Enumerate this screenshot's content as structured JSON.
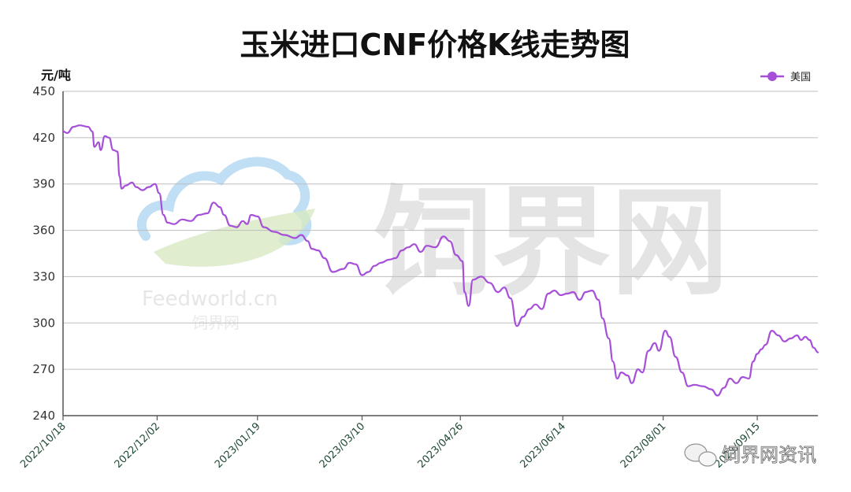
{
  "watermark": {
    "logo_text": "Feedworld.cn",
    "logo_sub": "饲界网",
    "big_text": "饲界网",
    "wechat_text": "饲界网资讯"
  },
  "colors": {
    "series": "#a64fd8",
    "grid": "#bdbdbd"
  },
  "chart_data": {
    "type": "line",
    "title": "玉米进口CNF价格K线走势图",
    "ylabel": "元/吨",
    "xlabel": "",
    "ylim": [
      240,
      450
    ],
    "yticks": [
      240,
      270,
      300,
      330,
      360,
      390,
      420,
      450
    ],
    "grid": true,
    "legend_position": "top-right",
    "x_range": [
      "2022-10-18",
      "2023-10-14"
    ],
    "xticks": [
      "2022/10/18",
      "2022/12/02",
      "2023/01/19",
      "2023/03/10",
      "2023/04/26",
      "2023/06/14",
      "2023/08/01",
      "2023/09/15"
    ],
    "xtick_dates": [
      "2022-10-18",
      "2022-12-02",
      "2023-01-19",
      "2023-03-10",
      "2023-04-26",
      "2023-06-14",
      "2023-08-01",
      "2023-09-15"
    ],
    "series": [
      {
        "name": "美国",
        "points": [
          [
            "2022-10-18",
            424
          ],
          [
            "2022-10-20",
            423
          ],
          [
            "2022-10-23",
            427
          ],
          [
            "2022-10-26",
            428
          ],
          [
            "2022-10-30",
            427
          ],
          [
            "2022-11-01",
            424
          ],
          [
            "2022-11-02",
            414
          ],
          [
            "2022-11-04",
            417
          ],
          [
            "2022-11-05",
            412
          ],
          [
            "2022-11-07",
            421
          ],
          [
            "2022-11-09",
            420
          ],
          [
            "2022-11-11",
            412
          ],
          [
            "2022-11-13",
            411
          ],
          [
            "2022-11-14",
            395
          ],
          [
            "2022-11-15",
            387
          ],
          [
            "2022-11-17",
            389
          ],
          [
            "2022-11-20",
            391
          ],
          [
            "2022-11-22",
            388
          ],
          [
            "2022-11-25",
            386
          ],
          [
            "2022-11-28",
            388
          ],
          [
            "2022-12-01",
            390
          ],
          [
            "2022-12-03",
            384
          ],
          [
            "2022-12-05",
            370
          ],
          [
            "2022-12-07",
            365
          ],
          [
            "2022-12-10",
            364
          ],
          [
            "2022-12-14",
            367
          ],
          [
            "2022-12-18",
            366
          ],
          [
            "2022-12-22",
            370
          ],
          [
            "2022-12-26",
            371
          ],
          [
            "2022-12-29",
            378
          ],
          [
            "2023-01-01",
            375
          ],
          [
            "2023-01-03",
            370
          ],
          [
            "2023-01-06",
            363
          ],
          [
            "2023-01-09",
            362
          ],
          [
            "2023-01-12",
            366
          ],
          [
            "2023-01-14",
            364
          ],
          [
            "2023-01-16",
            370
          ],
          [
            "2023-01-19",
            369
          ],
          [
            "2023-01-22",
            362
          ],
          [
            "2023-01-27",
            359
          ],
          [
            "2023-02-01",
            357
          ],
          [
            "2023-02-06",
            355
          ],
          [
            "2023-02-09",
            357
          ],
          [
            "2023-02-12",
            353
          ],
          [
            "2023-02-14",
            348
          ],
          [
            "2023-02-17",
            347
          ],
          [
            "2023-02-20",
            342
          ],
          [
            "2023-02-24",
            333
          ],
          [
            "2023-03-01",
            335
          ],
          [
            "2023-03-04",
            339
          ],
          [
            "2023-03-07",
            338
          ],
          [
            "2023-03-10",
            331
          ],
          [
            "2023-03-13",
            333
          ],
          [
            "2023-03-16",
            337
          ],
          [
            "2023-03-19",
            339
          ],
          [
            "2023-03-23",
            341
          ],
          [
            "2023-03-26",
            342
          ],
          [
            "2023-03-29",
            347
          ],
          [
            "2023-04-01",
            349
          ],
          [
            "2023-04-04",
            351
          ],
          [
            "2023-04-07",
            346
          ],
          [
            "2023-04-10",
            350
          ],
          [
            "2023-04-14",
            349
          ],
          [
            "2023-04-18",
            356
          ],
          [
            "2023-04-21",
            353
          ],
          [
            "2023-04-24",
            344
          ],
          [
            "2023-04-27",
            340
          ],
          [
            "2023-04-28",
            320
          ],
          [
            "2023-04-30",
            311
          ],
          [
            "2023-05-02",
            328
          ],
          [
            "2023-05-06",
            330
          ],
          [
            "2023-05-10",
            326
          ],
          [
            "2023-05-14",
            320
          ],
          [
            "2023-05-17",
            323
          ],
          [
            "2023-05-20",
            316
          ],
          [
            "2023-05-23",
            298
          ],
          [
            "2023-05-26",
            304
          ],
          [
            "2023-05-29",
            309
          ],
          [
            "2023-06-01",
            312
          ],
          [
            "2023-06-04",
            309
          ],
          [
            "2023-06-07",
            319
          ],
          [
            "2023-06-10",
            321
          ],
          [
            "2023-06-13",
            318
          ],
          [
            "2023-06-16",
            319
          ],
          [
            "2023-06-19",
            320
          ],
          [
            "2023-06-22",
            315
          ],
          [
            "2023-06-25",
            320
          ],
          [
            "2023-06-28",
            321
          ],
          [
            "2023-07-01",
            315
          ],
          [
            "2023-07-03",
            303
          ],
          [
            "2023-07-06",
            290
          ],
          [
            "2023-07-08",
            275
          ],
          [
            "2023-07-10",
            264
          ],
          [
            "2023-07-12",
            268
          ],
          [
            "2023-07-15",
            266
          ],
          [
            "2023-07-17",
            261
          ],
          [
            "2023-07-20",
            270
          ],
          [
            "2023-07-22",
            268
          ],
          [
            "2023-07-25",
            282
          ],
          [
            "2023-07-28",
            287
          ],
          [
            "2023-07-30",
            282
          ],
          [
            "2023-08-02",
            295
          ],
          [
            "2023-08-04",
            291
          ],
          [
            "2023-08-07",
            278
          ],
          [
            "2023-08-10",
            268
          ],
          [
            "2023-08-13",
            259
          ],
          [
            "2023-08-16",
            260
          ],
          [
            "2023-08-20",
            259
          ],
          [
            "2023-08-24",
            257
          ],
          [
            "2023-08-27",
            253
          ],
          [
            "2023-08-30",
            258
          ],
          [
            "2023-09-02",
            264
          ],
          [
            "2023-09-05",
            261
          ],
          [
            "2023-09-08",
            265
          ],
          [
            "2023-09-11",
            264
          ],
          [
            "2023-09-13",
            275
          ],
          [
            "2023-09-15",
            280
          ],
          [
            "2023-09-17",
            283
          ],
          [
            "2023-09-19",
            286
          ],
          [
            "2023-09-22",
            295
          ],
          [
            "2023-09-25",
            292
          ],
          [
            "2023-09-28",
            288
          ],
          [
            "2023-10-01",
            290
          ],
          [
            "2023-10-04",
            292
          ],
          [
            "2023-10-06",
            289
          ],
          [
            "2023-10-08",
            291
          ],
          [
            "2023-10-10",
            289
          ],
          [
            "2023-10-12",
            284
          ],
          [
            "2023-10-14",
            281
          ]
        ]
      }
    ]
  }
}
